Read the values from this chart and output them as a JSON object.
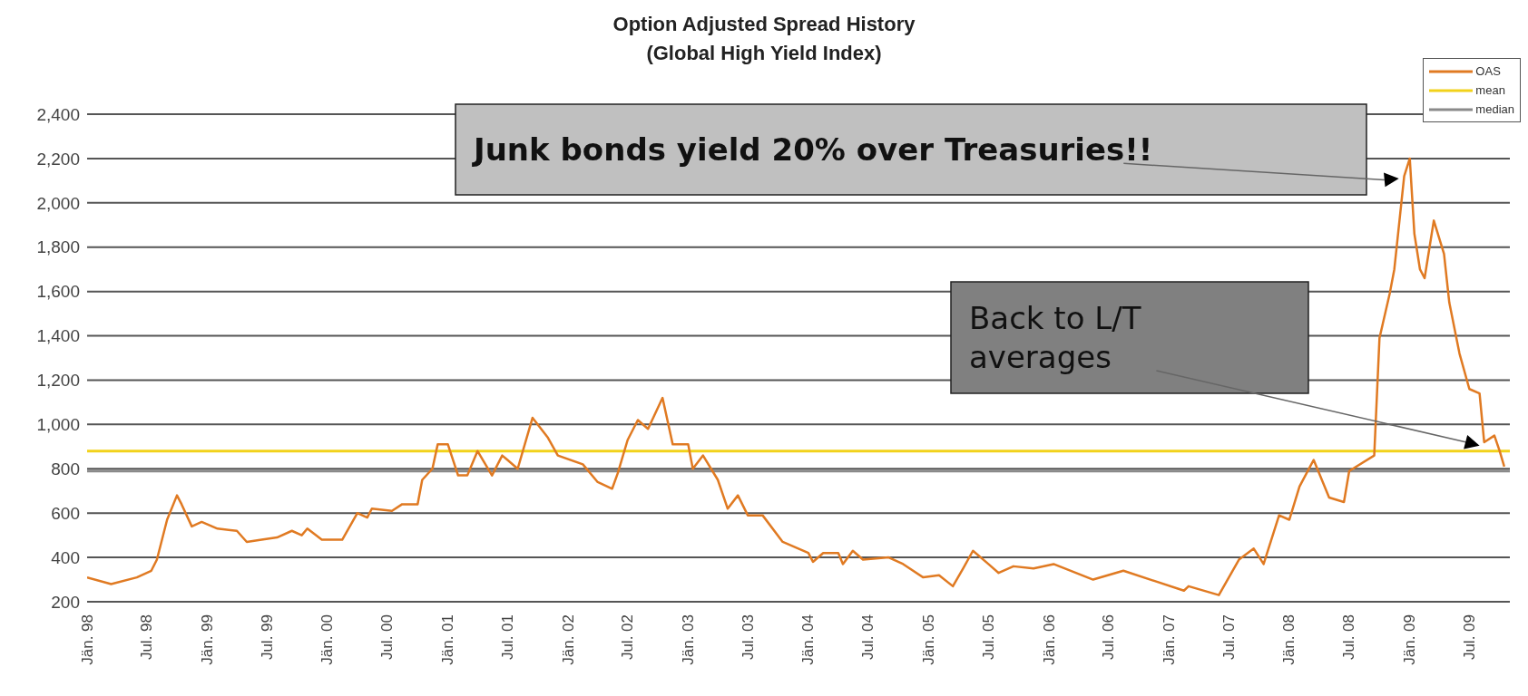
{
  "chart_data": {
    "type": "line",
    "title": "Option Adjusted Spread History",
    "subtitle": "(Global High Yield Index)",
    "x": [
      "1998-01",
      "1998-03-15",
      "1998-06",
      "1998-07-15",
      "1998-08",
      "1998-09",
      "1998-10",
      "1998-10-15",
      "1998-11-15",
      "1998-12-15",
      "1999-02",
      "1999-04",
      "1999-05",
      "1999-06-15",
      "1999-08",
      "1999-09-15",
      "1999-10-15",
      "1999-11",
      "1999-12-15",
      "2000-02-15",
      "2000-04",
      "2000-05",
      "2000-05-15",
      "2000-07-15",
      "2000-08-15",
      "2000-10",
      "2000-10-15",
      "2000-11-15",
      "2000-12",
      "2001-01",
      "2001-02",
      "2001-03",
      "2001-04",
      "2001-05-15",
      "2001-06-15",
      "2001-07",
      "2001-08",
      "2001-09-15",
      "2001-11",
      "2001-12",
      "2002-02-15",
      "2002-04",
      "2002-05-15",
      "2002-06",
      "2002-07",
      "2002-08",
      "2002-09",
      "2002-10-15",
      "2002-11-15",
      "2003-01",
      "2003-01-15",
      "2003-02-15",
      "2003-04",
      "2003-05",
      "2003-06",
      "2003-07",
      "2003-08-15",
      "2003-10-15",
      "2004-01",
      "2004-01-15",
      "2004-02-15",
      "2004-04",
      "2004-04-15",
      "2004-05-15",
      "2004-06-15",
      "2004-09",
      "2004-10-15",
      "2004-12-15",
      "2005-02",
      "2005-03-15",
      "2005-04-15",
      "2005-05-15",
      "2005-07",
      "2005-08",
      "2005-09-15",
      "2005-11-15",
      "2006-01-15",
      "2006-05-15",
      "2006-08-15",
      "2007-02-15",
      "2007-03",
      "2007-06",
      "2007-08",
      "2007-09-15",
      "2007-10-15",
      "2007-12",
      "2008-01",
      "2008-02",
      "2008-03-15",
      "2008-05",
      "2008-06-15",
      "2008-07",
      "2008-09-15",
      "2008-10",
      "2008-11",
      "2008-11-15",
      "2008-12-15",
      "2009-01",
      "2009-01-15",
      "2009-02",
      "2009-02-15",
      "2009-03-15",
      "2009-04-15",
      "2009-05",
      "2009-06",
      "2009-07",
      "2009-08",
      "2009-08-15",
      "2009-09-15",
      "2009-10",
      "2009-10-15"
    ],
    "series": [
      {
        "name": "OAS",
        "color": "#e07a22",
        "values": [
          310,
          280,
          310,
          340,
          390,
          570,
          680,
          640,
          540,
          560,
          530,
          520,
          470,
          480,
          490,
          520,
          500,
          530,
          480,
          480,
          600,
          580,
          620,
          610,
          640,
          640,
          750,
          800,
          910,
          910,
          770,
          770,
          880,
          770,
          860,
          840,
          800,
          1030,
          940,
          860,
          820,
          740,
          710,
          780,
          930,
          1020,
          980,
          1120,
          910,
          910,
          800,
          860,
          750,
          620,
          680,
          590,
          590,
          470,
          420,
          380,
          420,
          420,
          370,
          430,
          390,
          400,
          370,
          310,
          320,
          270,
          350,
          430,
          370,
          330,
          360,
          350,
          370,
          300,
          340,
          250,
          270,
          230,
          390,
          440,
          370,
          590,
          570,
          720,
          840,
          670,
          650,
          790,
          860,
          1390,
          1590,
          1700,
          2120,
          2200,
          1860,
          1700,
          1660,
          1920,
          1770,
          1550,
          1320,
          1160,
          1140,
          920,
          950,
          880,
          810
        ]
      }
    ],
    "xlim": [
      "1998-01",
      "2009-11"
    ],
    "xticks": [
      {
        "value": "1998-01",
        "label": "Jän. 98"
      },
      {
        "value": "1998-07",
        "label": "Jul. 98"
      },
      {
        "value": "1999-01",
        "label": "Jän. 99"
      },
      {
        "value": "1999-07",
        "label": "Jul. 99"
      },
      {
        "value": "2000-01",
        "label": "Jän. 00"
      },
      {
        "value": "2000-07",
        "label": "Jul. 00"
      },
      {
        "value": "2001-01",
        "label": "Jän. 01"
      },
      {
        "value": "2001-07",
        "label": "Jul. 01"
      },
      {
        "value": "2002-01",
        "label": "Jän. 02"
      },
      {
        "value": "2002-07",
        "label": "Jul. 02"
      },
      {
        "value": "2003-01",
        "label": "Jän. 03"
      },
      {
        "value": "2003-07",
        "label": "Jul. 03"
      },
      {
        "value": "2004-01",
        "label": "Jän. 04"
      },
      {
        "value": "2004-07",
        "label": "Jul. 04"
      },
      {
        "value": "2005-01",
        "label": "Jän. 05"
      },
      {
        "value": "2005-07",
        "label": "Jul. 05"
      },
      {
        "value": "2006-01",
        "label": "Jän. 06"
      },
      {
        "value": "2006-07",
        "label": "Jul. 06"
      },
      {
        "value": "2007-01",
        "label": "Jän. 07"
      },
      {
        "value": "2007-07",
        "label": "Jul. 07"
      },
      {
        "value": "2008-01",
        "label": "Jän. 08"
      },
      {
        "value": "2008-07",
        "label": "Jul. 08"
      },
      {
        "value": "2009-01",
        "label": "Jän. 09"
      },
      {
        "value": "2009-07",
        "label": "Jul. 09"
      }
    ],
    "ylim": [
      200,
      2400
    ],
    "yticks": [
      200,
      400,
      600,
      800,
      {
        "value": 1000,
        "label": "1,000"
      },
      {
        "value": 1200,
        "label": "1,200"
      },
      {
        "value": 1400,
        "label": "1,400"
      },
      {
        "value": 1600,
        "label": "1,600"
      },
      {
        "value": 1800,
        "label": "1,800"
      },
      {
        "value": 2000,
        "label": "2,000"
      },
      {
        "value": 2200,
        "label": "2,200"
      },
      {
        "value": 2400,
        "label": "2,400"
      }
    ],
    "ref_lines": [
      {
        "axis": "y",
        "value": 880,
        "label": "mean",
        "color": "#f2d21a"
      },
      {
        "axis": "y",
        "value": 790,
        "label": "median",
        "color": "#8a8a8a"
      }
    ],
    "annotations": [
      "Junk bonds yield 20% over Treasuries!!",
      "Back to L/T averages"
    ],
    "grid": "y",
    "legend": "top right",
    "line_style": "solid",
    "marker": "none"
  }
}
